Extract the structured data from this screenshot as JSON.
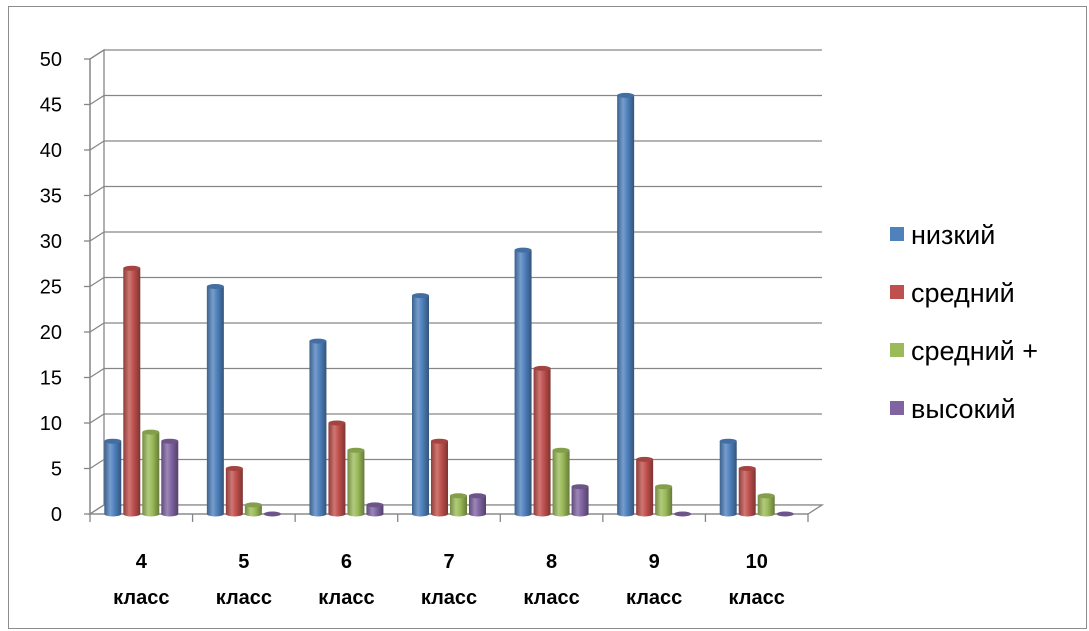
{
  "chart_data": {
    "type": "bar",
    "categories": [
      [
        "4",
        "класс"
      ],
      [
        "5",
        "класс"
      ],
      [
        "6",
        "класс"
      ],
      [
        "7",
        "класс"
      ],
      [
        "8",
        "класс"
      ],
      [
        "9",
        "класс"
      ],
      [
        "10",
        "класс"
      ]
    ],
    "series": [
      {
        "name": "низкий",
        "color": "#4F81BD",
        "values": [
          8,
          25,
          19,
          24,
          29,
          46,
          8
        ]
      },
      {
        "name": "средний",
        "color": "#C0504D",
        "values": [
          27,
          5,
          10,
          8,
          16,
          6,
          5
        ]
      },
      {
        "name": "средний +",
        "color": "#9BBB59",
        "values": [
          9,
          1,
          7,
          2,
          7,
          3,
          2
        ]
      },
      {
        "name": "высокий",
        "color": "#8064A2",
        "values": [
          8,
          0,
          1,
          2,
          3,
          0,
          0
        ]
      }
    ],
    "ylim": [
      0,
      50
    ],
    "yticks": [
      0,
      5,
      10,
      15,
      20,
      25,
      30,
      35,
      40,
      45,
      50
    ],
    "grid": true,
    "legend_position": "right"
  }
}
